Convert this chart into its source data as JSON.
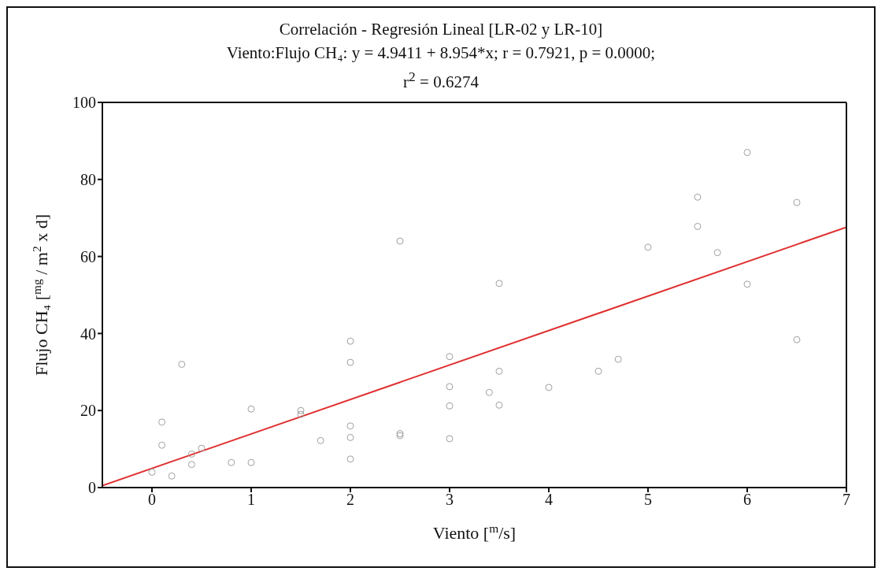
{
  "chart_data": {
    "type": "scatter",
    "title": "Correlación - Regresión Lineal [LR-02 y LR-10]",
    "subtitle": "Viento:Flujo CH₄:   y = 4.9411 + 8.954*x;  r = 0.7921, p = 0.0000;",
    "annotations": [
      "r$^{2}$ = 0.6274"
    ],
    "xlabel": "Viento [$^{m}$/s]",
    "ylabel": "Flujo CH₄ [$^{mg}$ / m$^{2}$ x d]",
    "xlim": [
      -0.5,
      7
    ],
    "xticks": [
      0,
      1,
      2,
      3,
      4,
      5,
      6,
      7
    ],
    "ylim": [
      0,
      100
    ],
    "yticks": [
      0,
      20,
      40,
      60,
      80,
      100
    ],
    "legend": false,
    "series": [
      {
        "color": "#a0a0a0",
        "marker": "circle",
        "x": [
          0,
          0.1,
          0.1,
          0.2,
          0.3,
          0.4,
          0.4,
          0.5,
          0.8,
          1.0,
          1.0,
          1.5,
          1.5,
          1.7,
          2.0,
          2.0,
          2.0,
          2.0,
          2.0,
          2.5,
          2.5,
          2.5,
          3.0,
          3.0,
          3.0,
          3.0,
          3.4,
          3.5,
          3.5,
          3.5,
          4.0,
          4.5,
          4.7,
          5.0,
          5.5,
          5.5,
          5.7,
          6.0,
          6.0,
          6.5,
          6.5
        ],
        "values": [
          4,
          17,
          11,
          3,
          32,
          6,
          8.7,
          10.2,
          6.5,
          20.4,
          6.5,
          19,
          20,
          12.2,
          38,
          32.5,
          16,
          13,
          7.4,
          64,
          14,
          13.5,
          34,
          26.2,
          21.2,
          12.7,
          24.7,
          53,
          30.2,
          21.4,
          26,
          30.2,
          33.3,
          62.4,
          75.4,
          67.8,
          61,
          87,
          52.8,
          74,
          38.4
        ]
      },
      {
        "type": "line",
        "color": "#e03030",
        "line_style": "solid",
        "x": [
          -0.5,
          7
        ],
        "values": [
          0.5,
          67.6
        ]
      }
    ]
  }
}
